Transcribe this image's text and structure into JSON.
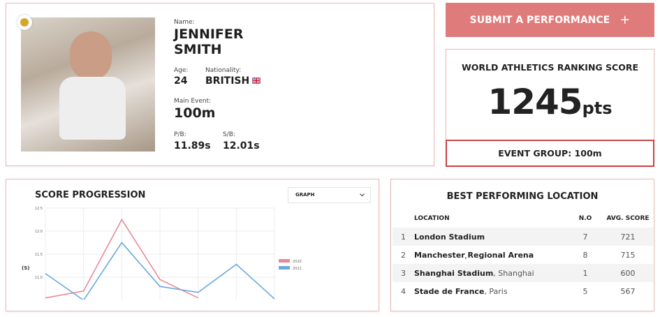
{
  "profile": {
    "name_label": "Name:",
    "first_name": "JENNIFER",
    "last_name": "SMITH",
    "age_label": "Age:",
    "age": "24",
    "nationality_label": "Nationality:",
    "nationality": "BRITISH",
    "event_label": "Main Event:",
    "event": "100m",
    "pb_label": "P/B:",
    "pb": "11.89s",
    "sb_label": "S/B:",
    "sb": "12.01s"
  },
  "submit_button": "SUBMIT A PERFORMANCE",
  "ranking": {
    "title": "WORLD ATHLETICS RANKING SCORE",
    "score": "1245",
    "unit": "pts",
    "event_group": "EVENT GROUP: 100m"
  },
  "progression": {
    "title": "SCORE PROGRESSION",
    "dropdown": "GRAPH",
    "chart_data": {
      "type": "line",
      "y_label": "(S)",
      "ylim": [
        10.5,
        12.5
      ],
      "yticks": [
        12.5,
        {
          "value": 12.0,
          "label": "12.0"
        },
        11.5,
        {
          "value": 11.0,
          "label": "11.0"
        }
      ],
      "series": [
        {
          "name": "2020",
          "color": "#e8899a",
          "values": [
            10.55,
            10.7,
            12.25,
            10.95,
            10.55,
            null,
            null
          ]
        },
        {
          "name": "2021",
          "color": "#6aa8de",
          "values": [
            11.08,
            10.5,
            11.75,
            10.8,
            10.67,
            11.28,
            10.53
          ]
        }
      ]
    }
  },
  "locations": {
    "title": "BEST PERFORMING LOCATION",
    "headers": [
      "LOCATION",
      "N.O",
      "AVG. SCORE"
    ],
    "rows": [
      {
        "index": "1",
        "venue": "London Stadium",
        "city": "",
        "count": "7",
        "avg": "721"
      },
      {
        "index": "2",
        "venue": "Manchester Regional Arena",
        "city": "",
        "count": "8",
        "avg": "715"
      },
      {
        "index": "3",
        "venue": "Shanghai Stadium",
        "city": ", Shanghai",
        "count": "1",
        "avg": "600"
      },
      {
        "index": "4",
        "venue": "Stade de France",
        "city": ", Paris",
        "count": "5",
        "avg": "567"
      }
    ]
  }
}
